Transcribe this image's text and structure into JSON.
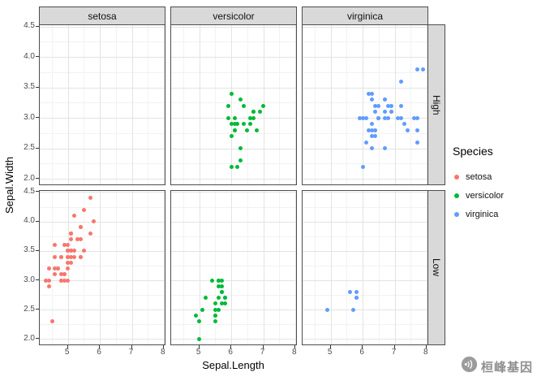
{
  "figure": {
    "xlabel": "Sepal.Length",
    "ylabel": "Sepal.Width"
  },
  "legend": {
    "title": "Species",
    "entries": [
      {
        "label": "setosa",
        "color": "#F8766D"
      },
      {
        "label": "versicolor",
        "color": "#00BA38"
      },
      {
        "label": "virginica",
        "color": "#619CFF"
      }
    ]
  },
  "watermark": {
    "text": "桓峰基因",
    "icon": "broadcast-circle-icon"
  },
  "colors": {
    "strip_bg": "#d9d9d9",
    "panel_border": "#4d4d4d",
    "grid_major": "#e3e3e3",
    "grid_minor": "#f2f2f2",
    "tick_label": "#4d4d4d",
    "watermark": "#8f8f8f"
  },
  "chart_data": {
    "type": "scatter",
    "title": "",
    "xlabel": "Sepal.Length",
    "ylabel": "Sepal.Width",
    "facet_columns": [
      "setosa",
      "versicolor",
      "virginica"
    ],
    "facet_rows": [
      "High",
      "Low"
    ],
    "x_ticks": [
      5,
      6,
      7,
      8
    ],
    "y_ticks": [
      2.0,
      2.5,
      3.0,
      3.5,
      4.0,
      4.5
    ],
    "x_minor": [
      4.5,
      5.5,
      6.5,
      7.5
    ],
    "y_minor": [
      2.25,
      2.75,
      3.25,
      3.75,
      4.25
    ],
    "xlim": [
      4.12,
      8.08
    ],
    "ylim": [
      1.88,
      4.52
    ],
    "grid": true,
    "legend_position": "right",
    "series": [
      {
        "name": "setosa",
        "color": "#F8766D",
        "facet_row": "Low",
        "points": [
          [
            5.1,
            3.5
          ],
          [
            4.9,
            3.0
          ],
          [
            4.7,
            3.2
          ],
          [
            4.6,
            3.1
          ],
          [
            5.0,
            3.6
          ],
          [
            5.4,
            3.9
          ],
          [
            4.6,
            3.4
          ],
          [
            5.0,
            3.4
          ],
          [
            4.4,
            2.9
          ],
          [
            4.9,
            3.1
          ],
          [
            5.4,
            3.7
          ],
          [
            4.8,
            3.4
          ],
          [
            4.8,
            3.0
          ],
          [
            4.3,
            3.0
          ],
          [
            5.8,
            4.0
          ],
          [
            5.7,
            4.4
          ],
          [
            5.4,
            3.9
          ],
          [
            5.1,
            3.5
          ],
          [
            5.7,
            3.8
          ],
          [
            5.1,
            3.8
          ],
          [
            5.4,
            3.4
          ],
          [
            5.1,
            3.7
          ],
          [
            4.6,
            3.6
          ],
          [
            5.1,
            3.3
          ],
          [
            4.8,
            3.4
          ],
          [
            5.0,
            3.0
          ],
          [
            5.0,
            3.4
          ],
          [
            5.2,
            3.5
          ],
          [
            5.2,
            3.4
          ],
          [
            4.7,
            3.2
          ],
          [
            4.8,
            3.1
          ],
          [
            5.4,
            3.4
          ],
          [
            5.2,
            4.1
          ],
          [
            5.5,
            4.2
          ],
          [
            4.9,
            3.1
          ],
          [
            5.0,
            3.2
          ],
          [
            5.5,
            3.5
          ],
          [
            4.9,
            3.6
          ],
          [
            4.4,
            3.0
          ],
          [
            5.1,
            3.4
          ],
          [
            5.0,
            3.5
          ],
          [
            4.5,
            2.3
          ],
          [
            4.4,
            3.2
          ],
          [
            5.0,
            3.5
          ],
          [
            5.1,
            3.8
          ],
          [
            4.8,
            3.0
          ],
          [
            5.1,
            3.8
          ],
          [
            4.6,
            3.2
          ],
          [
            5.3,
            3.7
          ],
          [
            5.0,
            3.3
          ]
        ]
      },
      {
        "name": "versicolor",
        "color": "#00BA38",
        "facet_row": "High",
        "points": [
          [
            7.0,
            3.2
          ],
          [
            6.4,
            3.2
          ],
          [
            6.9,
            3.1
          ],
          [
            6.5,
            2.8
          ],
          [
            6.3,
            3.3
          ],
          [
            6.6,
            2.9
          ],
          [
            5.9,
            3.0
          ],
          [
            6.0,
            2.2
          ],
          [
            6.1,
            2.9
          ],
          [
            6.7,
            3.1
          ],
          [
            6.2,
            2.2
          ],
          [
            5.9,
            3.2
          ],
          [
            6.1,
            2.8
          ],
          [
            6.3,
            2.5
          ],
          [
            6.1,
            2.8
          ],
          [
            6.4,
            2.9
          ],
          [
            6.6,
            3.0
          ],
          [
            6.8,
            2.8
          ],
          [
            6.7,
            3.0
          ],
          [
            6.0,
            2.9
          ],
          [
            6.0,
            2.7
          ],
          [
            6.0,
            3.4
          ],
          [
            6.7,
            3.1
          ],
          [
            6.3,
            2.3
          ],
          [
            6.1,
            3.0
          ],
          [
            6.2,
            2.9
          ]
        ]
      },
      {
        "name": "versicolor",
        "color": "#00BA38",
        "facet_row": "Low",
        "points": [
          [
            5.5,
            2.3
          ],
          [
            5.7,
            2.8
          ],
          [
            4.9,
            2.4
          ],
          [
            5.2,
            2.7
          ],
          [
            5.0,
            2.0
          ],
          [
            5.6,
            2.9
          ],
          [
            5.6,
            3.0
          ],
          [
            5.8,
            2.7
          ],
          [
            5.6,
            2.5
          ],
          [
            5.7,
            2.6
          ],
          [
            5.5,
            2.4
          ],
          [
            5.5,
            2.4
          ],
          [
            5.8,
            2.7
          ],
          [
            5.4,
            3.0
          ],
          [
            5.6,
            3.0
          ],
          [
            5.5,
            2.5
          ],
          [
            5.5,
            2.6
          ],
          [
            5.8,
            2.6
          ],
          [
            5.0,
            2.3
          ],
          [
            5.6,
            2.7
          ],
          [
            5.7,
            3.0
          ],
          [
            5.7,
            2.9
          ],
          [
            5.1,
            2.5
          ],
          [
            5.7,
            2.8
          ]
        ]
      },
      {
        "name": "virginica",
        "color": "#619CFF",
        "facet_row": "High",
        "points": [
          [
            6.3,
            3.3
          ],
          [
            7.1,
            3.0
          ],
          [
            6.3,
            2.9
          ],
          [
            6.5,
            3.0
          ],
          [
            7.6,
            3.0
          ],
          [
            7.3,
            2.9
          ],
          [
            6.7,
            2.5
          ],
          [
            7.2,
            3.6
          ],
          [
            6.5,
            3.2
          ],
          [
            6.4,
            2.7
          ],
          [
            6.8,
            3.0
          ],
          [
            6.4,
            3.2
          ],
          [
            6.5,
            3.0
          ],
          [
            7.7,
            3.8
          ],
          [
            7.7,
            2.6
          ],
          [
            6.0,
            2.2
          ],
          [
            6.9,
            3.2
          ],
          [
            7.7,
            2.8
          ],
          [
            6.3,
            2.7
          ],
          [
            6.7,
            3.3
          ],
          [
            7.2,
            3.2
          ],
          [
            6.2,
            2.8
          ],
          [
            6.1,
            3.0
          ],
          [
            6.4,
            2.8
          ],
          [
            7.2,
            3.0
          ],
          [
            7.4,
            2.8
          ],
          [
            7.9,
            3.8
          ],
          [
            6.4,
            2.8
          ],
          [
            6.3,
            2.8
          ],
          [
            6.1,
            2.6
          ],
          [
            7.7,
            3.0
          ],
          [
            6.3,
            3.4
          ],
          [
            6.4,
            3.1
          ],
          [
            6.0,
            3.0
          ],
          [
            6.9,
            3.1
          ],
          [
            6.7,
            3.1
          ],
          [
            6.9,
            3.1
          ],
          [
            6.8,
            3.2
          ],
          [
            6.7,
            3.3
          ],
          [
            6.7,
            3.0
          ],
          [
            6.3,
            2.5
          ],
          [
            6.5,
            3.0
          ],
          [
            6.2,
            3.4
          ],
          [
            5.9,
            3.0
          ]
        ]
      },
      {
        "name": "virginica",
        "color": "#619CFF",
        "facet_row": "Low",
        "points": [
          [
            5.8,
            2.7
          ],
          [
            4.9,
            2.5
          ],
          [
            5.7,
            2.5
          ],
          [
            5.8,
            2.8
          ],
          [
            5.6,
            2.8
          ],
          [
            5.8,
            2.7
          ]
        ]
      }
    ]
  }
}
